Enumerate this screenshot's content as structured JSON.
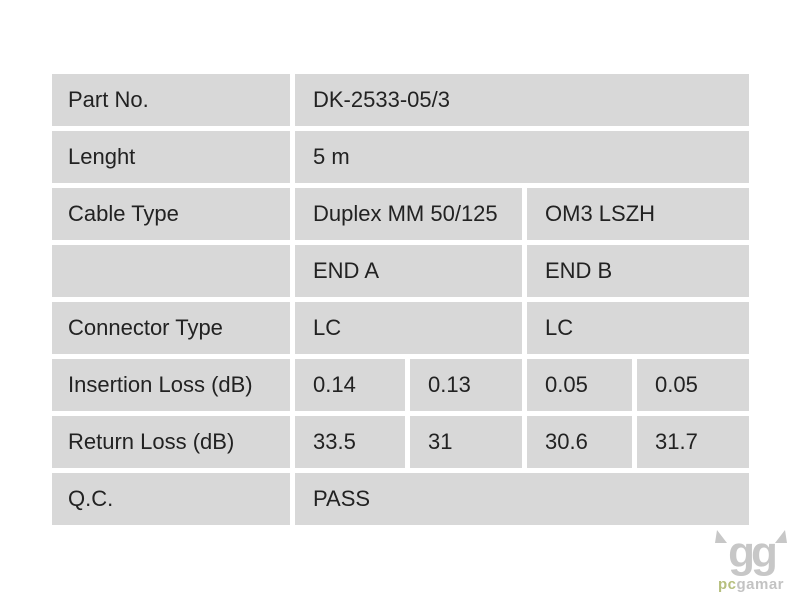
{
  "page": {
    "background": "#ffffff"
  },
  "table": {
    "cell_bg": "#d8d8d8",
    "text_color": "#222222",
    "rows": [
      {
        "label": "Part No.",
        "values": [
          "DK-2533-05/3"
        ]
      },
      {
        "label": "Lenght",
        "values": [
          "5 m"
        ]
      },
      {
        "label": "Cable Type",
        "values": [
          "Duplex MM 50/125",
          "OM3 LSZH"
        ]
      },
      {
        "label": "",
        "values": [
          "END A",
          "END B"
        ]
      },
      {
        "label": "Connector Type",
        "values": [
          "LC",
          "LC"
        ]
      },
      {
        "label": "Insertion Loss (dB)",
        "values": [
          "0.14",
          "0.13",
          "0.05",
          "0.05"
        ]
      },
      {
        "label": "Return Loss (dB)",
        "values": [
          "33.5",
          "31",
          "30.6",
          "31.7"
        ]
      },
      {
        "label": "Q.C.",
        "values": [
          "PASS"
        ]
      }
    ]
  },
  "watermark": {
    "glyph": "gg",
    "text_green": "pc",
    "text_gray": "gamar",
    "green_color": "#b6bf7e",
    "gray_color": "#c7c7c7"
  }
}
